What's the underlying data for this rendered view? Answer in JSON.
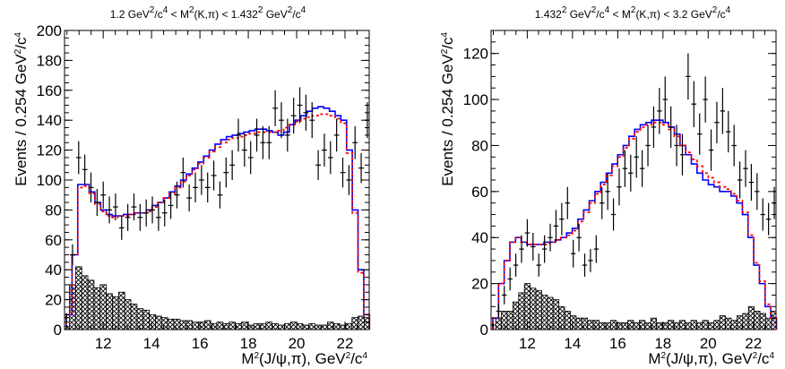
{
  "chart_data": [
    {
      "type": "histogram",
      "title_parts": [
        "1.2 GeV",
        "2",
        "/c",
        "4",
        " < M",
        "2",
        "(K,π) < 1.432",
        "2",
        " GeV",
        "2",
        "/c",
        "4"
      ],
      "xlabel_parts": [
        "M",
        "2",
        "(J/ψ,π), GeV",
        "2",
        "/c",
        "4"
      ],
      "ylabel_parts": [
        "Events / 0.254 GeV",
        "2",
        "/c",
        "4"
      ],
      "xlim": [
        10.4,
        23.0
      ],
      "ylim": [
        0,
        200
      ],
      "xticks": [
        12,
        14,
        16,
        18,
        20,
        22
      ],
      "yticks": [
        0,
        20,
        40,
        60,
        80,
        100,
        120,
        140,
        160,
        180,
        200
      ],
      "xtick_labels": [
        "12",
        "14",
        "16",
        "18",
        "20",
        "22"
      ],
      "ytick_labels": [
        "0",
        "20",
        "40",
        "60",
        "80",
        "100",
        "120",
        "140",
        "160",
        "180",
        "200"
      ],
      "bin_start": 10.35,
      "bin_width": 0.254,
      "grid": false,
      "series": [
        {
          "role": "data",
          "values": [
            8,
            50,
            115,
            107,
            95,
            85,
            90,
            80,
            82,
            68,
            75,
            82,
            75,
            78,
            80,
            75,
            78,
            83,
            90,
            105,
            88,
            95,
            100,
            95,
            103,
            90,
            105,
            110,
            130,
            120,
            115,
            130,
            125,
            125,
            148,
            140,
            130,
            143,
            150,
            145,
            140,
            110,
            120,
            115,
            130,
            105,
            100,
            125,
            108,
            140,
            160,
            135,
            120,
            170,
            170,
            150,
            140,
            110,
            67,
            10
          ],
          "errors": [
            3,
            7,
            11,
            10,
            10,
            9,
            9,
            9,
            9,
            8,
            9,
            9,
            9,
            9,
            9,
            9,
            9,
            9,
            9,
            10,
            9,
            10,
            10,
            10,
            10,
            9,
            10,
            10,
            11,
            11,
            11,
            11,
            11,
            11,
            12,
            12,
            11,
            12,
            12,
            12,
            12,
            10,
            11,
            11,
            11,
            10,
            10,
            11,
            10,
            12,
            13,
            12,
            11,
            13,
            13,
            12,
            12,
            10,
            8,
            3
          ]
        },
        {
          "role": "total-fit",
          "color": "#0000ff",
          "values": [
            10,
            50,
            97,
            97,
            92,
            85,
            80,
            77,
            76,
            76,
            77,
            77,
            78,
            78,
            80,
            83,
            85,
            88,
            92,
            96,
            100,
            104,
            108,
            112,
            116,
            120,
            124,
            127,
            129,
            130,
            131,
            132,
            133,
            134,
            134,
            133,
            132,
            130,
            132,
            137,
            140,
            143,
            146,
            148,
            149,
            148,
            146,
            143,
            140,
            120,
            80,
            40,
            10
          ]
        },
        {
          "role": "alternative-fit",
          "color": "#ff0000",
          "values": [
            10,
            50,
            95,
            96,
            91,
            84,
            79,
            76,
            75,
            76,
            76,
            77,
            78,
            78,
            79,
            82,
            85,
            88,
            91,
            95,
            99,
            103,
            107,
            111,
            115,
            119,
            122,
            125,
            127,
            128,
            129,
            130,
            131,
            132,
            132,
            132,
            132,
            133,
            135,
            137,
            139,
            141,
            142,
            143,
            144,
            144,
            143,
            141,
            138,
            118,
            78,
            38,
            10
          ]
        },
        {
          "role": "background",
          "values": [
            2,
            30,
            42,
            36,
            33,
            28,
            30,
            24,
            22,
            25,
            20,
            17,
            14,
            13,
            10,
            9,
            8,
            7,
            7,
            6,
            6,
            5,
            5,
            6,
            4,
            5,
            4,
            5,
            4,
            5,
            3,
            4,
            4,
            5,
            4,
            3,
            4,
            5,
            4,
            3,
            4,
            3,
            3,
            5,
            4,
            3,
            4,
            8,
            9,
            8,
            10,
            8,
            9,
            7,
            6,
            8,
            5,
            3,
            0,
            0
          ]
        }
      ]
    },
    {
      "type": "histogram",
      "title_parts": [
        "1.432",
        "2",
        " GeV",
        "2",
        "/c",
        "4",
        " < M",
        "2",
        "(K,π) < 3.2 GeV",
        "2",
        "/c",
        "4"
      ],
      "xlabel_parts": [
        "M",
        "2",
        "(J/ψ,π), GeV",
        "2",
        "/c",
        "4"
      ],
      "ylabel_parts": [
        "Events / 0.254 GeV",
        "2",
        "/c",
        "4"
      ],
      "xlim": [
        10.4,
        23.0
      ],
      "ylim": [
        0,
        130
      ],
      "xticks": [
        12,
        14,
        16,
        18,
        20,
        22
      ],
      "yticks": [
        0,
        20,
        40,
        60,
        80,
        100,
        120
      ],
      "xtick_labels": [
        "12",
        "14",
        "16",
        "18",
        "20",
        "22"
      ],
      "ytick_labels": [
        "0",
        "20",
        "40",
        "60",
        "80",
        "100",
        "120"
      ],
      "bin_start": 10.35,
      "bin_width": 0.254,
      "grid": false,
      "series": [
        {
          "role": "data",
          "values": [
            2,
            8,
            15,
            22,
            28,
            35,
            42,
            36,
            28,
            35,
            40,
            45,
            48,
            55,
            33,
            40,
            28,
            30,
            35,
            55,
            60,
            50,
            62,
            70,
            68,
            75,
            70,
            80,
            88,
            95,
            100,
            88,
            80,
            76,
            110,
            98,
            85,
            100,
            78,
            90,
            95,
            86,
            80,
            65,
            70,
            64,
            60,
            50,
            48,
            55,
            68,
            60,
            65,
            55,
            40,
            38,
            25,
            20,
            15,
            10
          ],
          "errors": [
            1,
            3,
            4,
            5,
            5,
            6,
            6,
            6,
            5,
            6,
            6,
            7,
            7,
            7,
            6,
            6,
            5,
            5,
            6,
            7,
            8,
            7,
            8,
            8,
            8,
            9,
            8,
            9,
            9,
            10,
            10,
            9,
            9,
            9,
            10,
            10,
            9,
            10,
            9,
            9,
            10,
            9,
            9,
            8,
            8,
            8,
            8,
            7,
            7,
            7,
            8,
            8,
            8,
            7,
            6,
            6,
            5,
            4,
            4,
            3
          ]
        },
        {
          "role": "total-fit",
          "color": "#0000ff",
          "values": [
            5,
            20,
            30,
            38,
            40,
            38,
            37,
            37,
            37,
            38,
            38,
            39,
            40,
            42,
            44,
            48,
            52,
            56,
            60,
            64,
            68,
            72,
            76,
            80,
            84,
            87,
            89,
            90,
            91,
            91,
            90,
            88,
            85,
            80,
            76,
            72,
            68,
            65,
            63,
            62,
            60,
            60,
            58,
            55,
            50,
            40,
            28,
            20,
            10,
            5
          ]
        },
        {
          "role": "alternative-fit",
          "color": "#ff0000",
          "values": [
            5,
            20,
            30,
            38,
            40,
            38,
            37,
            37,
            37,
            37,
            38,
            39,
            40,
            41,
            43,
            47,
            51,
            55,
            59,
            63,
            67,
            71,
            75,
            79,
            83,
            86,
            88,
            89,
            90,
            90,
            89,
            87,
            84,
            80,
            77,
            74,
            71,
            68,
            66,
            64,
            62,
            61,
            59,
            56,
            51,
            41,
            29,
            21,
            11,
            5
          ]
        },
        {
          "role": "background",
          "values": [
            0,
            5,
            8,
            8,
            12,
            16,
            20,
            18,
            17,
            15,
            14,
            13,
            10,
            8,
            6,
            5,
            5,
            4,
            4,
            3,
            3,
            4,
            3,
            3,
            4,
            3,
            4,
            3,
            5,
            3,
            3,
            4,
            3,
            4,
            3,
            4,
            3,
            4,
            3,
            4,
            6,
            5,
            4,
            6,
            7,
            10,
            8,
            7,
            5,
            8,
            7,
            6,
            4,
            4,
            3,
            3,
            2,
            1,
            0,
            0
          ]
        }
      ]
    }
  ]
}
